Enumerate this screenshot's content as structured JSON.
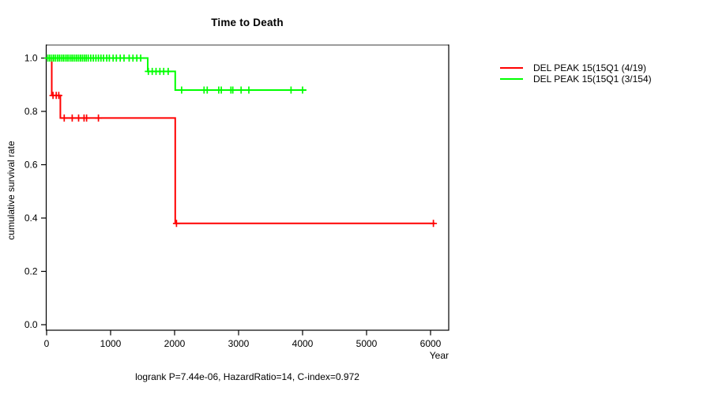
{
  "title": "Time to Death",
  "axes": {
    "y_label": "cumulative survival rate",
    "x_label": "Year",
    "x_ticks": [
      0,
      1000,
      2000,
      3000,
      4000,
      5000,
      6000
    ],
    "y_ticks": [
      {
        "label": "0.0",
        "value": 0.0
      },
      {
        "label": "0.2",
        "value": 0.2
      },
      {
        "label": "0.4",
        "value": 0.4
      },
      {
        "label": "0.6",
        "value": 0.6
      },
      {
        "label": "0.8",
        "value": 0.8
      },
      {
        "label": "1.0",
        "value": 1.0
      }
    ]
  },
  "footnote": "logrank P=7.44e-06, HazardRatio=14, C-index=0.972",
  "legend": [
    {
      "label": "DEL PEAK 15(15Q1 (4/19)",
      "color": "#ff0000"
    },
    {
      "label": "DEL PEAK 15(15Q1 (3/154)",
      "color": "#00ff00"
    }
  ],
  "colors": {
    "axis": "#000000",
    "box_top_shadow": "#8c8c8c",
    "background": "#ffffff"
  },
  "chart_data": {
    "type": "line",
    "subtype": "kaplan-meier-step",
    "title": "Time to Death",
    "xlabel": "Year",
    "ylabel": "cumulative survival rate",
    "xlim": [
      0,
      6000
    ],
    "ylim": [
      0,
      1.0
    ],
    "grid": false,
    "legend_position": "right-outside",
    "series": [
      {
        "name": "DEL PEAK 15(15Q1 (4/19)",
        "color": "#ff0000",
        "events_total": "4/19",
        "steps": [
          [
            0,
            1.0
          ],
          [
            80,
            1.0
          ],
          [
            80,
            0.86
          ],
          [
            215,
            0.86
          ],
          [
            215,
            0.775
          ],
          [
            2010,
            0.775
          ],
          [
            2010,
            0.38
          ],
          [
            6070,
            0.38
          ]
        ],
        "censors": [
          [
            100,
            0.86
          ],
          [
            150,
            0.86
          ],
          [
            190,
            0.86
          ],
          [
            275,
            0.775
          ],
          [
            400,
            0.775
          ],
          [
            500,
            0.775
          ],
          [
            585,
            0.775
          ],
          [
            625,
            0.775
          ],
          [
            810,
            0.775
          ],
          [
            2030,
            0.38
          ],
          [
            6045,
            0.38
          ]
        ]
      },
      {
        "name": "DEL PEAK 15(15Q1 (3/154)",
        "color": "#00ff00",
        "events_total": "3/154",
        "steps": [
          [
            0,
            1.0
          ],
          [
            1580,
            1.0
          ],
          [
            1580,
            0.95
          ],
          [
            2010,
            0.95
          ],
          [
            2010,
            0.88
          ],
          [
            4060,
            0.88
          ]
        ],
        "censors": [
          [
            20,
            1.0
          ],
          [
            50,
            1.0
          ],
          [
            80,
            1.0
          ],
          [
            110,
            1.0
          ],
          [
            140,
            1.0
          ],
          [
            170,
            1.0
          ],
          [
            200,
            1.0
          ],
          [
            230,
            1.0
          ],
          [
            260,
            1.0
          ],
          [
            290,
            1.0
          ],
          [
            320,
            1.0
          ],
          [
            350,
            1.0
          ],
          [
            380,
            1.0
          ],
          [
            410,
            1.0
          ],
          [
            440,
            1.0
          ],
          [
            470,
            1.0
          ],
          [
            500,
            1.0
          ],
          [
            530,
            1.0
          ],
          [
            560,
            1.0
          ],
          [
            590,
            1.0
          ],
          [
            620,
            1.0
          ],
          [
            650,
            1.0
          ],
          [
            690,
            1.0
          ],
          [
            730,
            1.0
          ],
          [
            770,
            1.0
          ],
          [
            810,
            1.0
          ],
          [
            850,
            1.0
          ],
          [
            890,
            1.0
          ],
          [
            940,
            1.0
          ],
          [
            980,
            1.0
          ],
          [
            1040,
            1.0
          ],
          [
            1090,
            1.0
          ],
          [
            1150,
            1.0
          ],
          [
            1210,
            1.0
          ],
          [
            1290,
            1.0
          ],
          [
            1350,
            1.0
          ],
          [
            1410,
            1.0
          ],
          [
            1470,
            1.0
          ],
          [
            1590,
            0.95
          ],
          [
            1650,
            0.95
          ],
          [
            1710,
            0.95
          ],
          [
            1770,
            0.95
          ],
          [
            1830,
            0.95
          ],
          [
            1900,
            0.95
          ],
          [
            2110,
            0.88
          ],
          [
            2460,
            0.88
          ],
          [
            2510,
            0.88
          ],
          [
            2690,
            0.88
          ],
          [
            2730,
            0.88
          ],
          [
            2880,
            0.88
          ],
          [
            2910,
            0.88
          ],
          [
            3040,
            0.88
          ],
          [
            3160,
            0.88
          ],
          [
            3820,
            0.88
          ],
          [
            4000,
            0.88
          ]
        ]
      }
    ]
  }
}
